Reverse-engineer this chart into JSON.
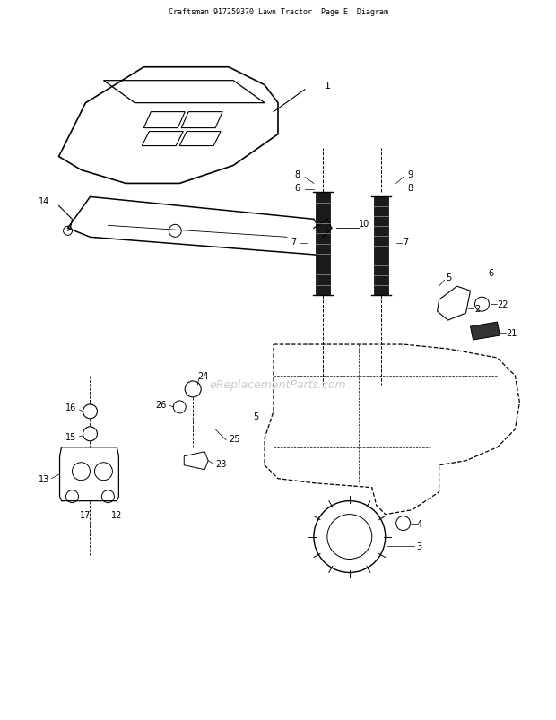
{
  "title": "Craftsman 917259370 Lawn Tractor  Page E  Diagram",
  "watermark": "eReplacementParts.com",
  "background_color": "#ffffff",
  "line_color": "#000000",
  "figsize": [
    6.2,
    8.04
  ],
  "dpi": 100
}
